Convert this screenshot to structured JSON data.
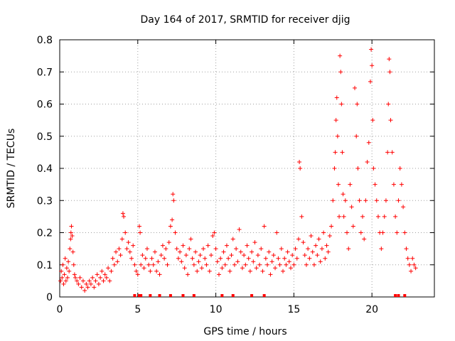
{
  "chart_data": {
    "type": "scatter",
    "title": "Day 164 of 2017, SRMTID for receiver djig",
    "xlabel": "GPS time / hours",
    "ylabel": "SRMTID / TECUs",
    "xlim": [
      0,
      24
    ],
    "ylim": [
      0,
      0.8
    ],
    "xticks": [
      0,
      5,
      10,
      15,
      20
    ],
    "yticks": [
      0,
      0.1,
      0.2,
      0.3,
      0.4,
      0.5,
      0.6,
      0.7,
      0.8
    ],
    "xtick_labels": [
      "0",
      "5",
      "10",
      "15",
      "20"
    ],
    "ytick_labels": [
      "0",
      "0.1",
      "0.2",
      "0.3",
      "0.4",
      "0.5",
      "0.6",
      "0.7",
      "0.8"
    ],
    "grid": true,
    "marker": "+",
    "color": "#ff0000",
    "series": [
      {
        "name": "SRMTID",
        "points": [
          [
            0.05,
            0.05
          ],
          [
            0.1,
            0.08
          ],
          [
            0.15,
            0.06
          ],
          [
            0.2,
            0.1
          ],
          [
            0.25,
            0.04
          ],
          [
            0.3,
            0.07
          ],
          [
            0.35,
            0.12
          ],
          [
            0.4,
            0.05
          ],
          [
            0.45,
            0.09
          ],
          [
            0.5,
            0.06
          ],
          [
            0.55,
            0.11
          ],
          [
            0.6,
            0.08
          ],
          [
            0.65,
            0.15
          ],
          [
            0.7,
            0.18
          ],
          [
            0.72,
            0.2
          ],
          [
            0.75,
            0.22
          ],
          [
            0.8,
            0.19
          ],
          [
            0.85,
            0.14
          ],
          [
            0.9,
            0.1
          ],
          [
            0.95,
            0.07
          ],
          [
            1.0,
            0.06
          ],
          [
            1.1,
            0.05
          ],
          [
            1.2,
            0.04
          ],
          [
            1.3,
            0.06
          ],
          [
            1.4,
            0.03
          ],
          [
            1.5,
            0.05
          ],
          [
            1.6,
            0.02
          ],
          [
            1.7,
            0.04
          ],
          [
            1.8,
            0.03
          ],
          [
            1.9,
            0.05
          ],
          [
            2.0,
            0.04
          ],
          [
            2.1,
            0.06
          ],
          [
            2.2,
            0.03
          ],
          [
            2.3,
            0.05
          ],
          [
            2.4,
            0.07
          ],
          [
            2.5,
            0.04
          ],
          [
            2.6,
            0.06
          ],
          [
            2.7,
            0.08
          ],
          [
            2.8,
            0.05
          ],
          [
            2.9,
            0.07
          ],
          [
            3.0,
            0.06
          ],
          [
            3.1,
            0.09
          ],
          [
            3.2,
            0.05
          ],
          [
            3.3,
            0.08
          ],
          [
            3.4,
            0.12
          ],
          [
            3.5,
            0.1
          ],
          [
            3.6,
            0.14
          ],
          [
            3.7,
            0.11
          ],
          [
            3.8,
            0.15
          ],
          [
            3.9,
            0.13
          ],
          [
            4.0,
            0.18
          ],
          [
            4.05,
            0.26
          ],
          [
            4.1,
            0.25
          ],
          [
            4.2,
            0.2
          ],
          [
            4.3,
            0.15
          ],
          [
            4.4,
            0.17
          ],
          [
            4.5,
            0.14
          ],
          [
            4.6,
            0.12
          ],
          [
            4.7,
            0.16
          ],
          [
            4.8,
            0.1
          ],
          [
            4.9,
            0.08
          ],
          [
            5.0,
            0.07
          ],
          [
            5.1,
            0.22
          ],
          [
            5.15,
            0.2
          ],
          [
            5.2,
            0.1
          ],
          [
            5.3,
            0.13
          ],
          [
            5.4,
            0.09
          ],
          [
            5.5,
            0.12
          ],
          [
            5.6,
            0.15
          ],
          [
            5.7,
            0.1
          ],
          [
            5.8,
            0.08
          ],
          [
            5.9,
            0.12
          ],
          [
            6.0,
            0.1
          ],
          [
            6.1,
            0.14
          ],
          [
            6.2,
            0.08
          ],
          [
            6.3,
            0.11
          ],
          [
            6.4,
            0.07
          ],
          [
            6.5,
            0.13
          ],
          [
            6.6,
            0.16
          ],
          [
            6.7,
            0.12
          ],
          [
            6.8,
            0.15
          ],
          [
            6.9,
            0.1
          ],
          [
            7.0,
            0.17
          ],
          [
            7.1,
            0.22
          ],
          [
            7.2,
            0.24
          ],
          [
            7.25,
            0.32
          ],
          [
            7.3,
            0.3
          ],
          [
            7.4,
            0.2
          ],
          [
            7.5,
            0.15
          ],
          [
            7.6,
            0.12
          ],
          [
            7.7,
            0.14
          ],
          [
            7.8,
            0.11
          ],
          [
            7.9,
            0.16
          ],
          [
            8.0,
            0.09
          ],
          [
            8.1,
            0.13
          ],
          [
            8.2,
            0.07
          ],
          [
            8.3,
            0.15
          ],
          [
            8.4,
            0.18
          ],
          [
            8.5,
            0.12
          ],
          [
            8.6,
            0.1
          ],
          [
            8.7,
            0.14
          ],
          [
            8.8,
            0.08
          ],
          [
            8.9,
            0.11
          ],
          [
            9.0,
            0.13
          ],
          [
            9.1,
            0.09
          ],
          [
            9.2,
            0.15
          ],
          [
            9.3,
            0.12
          ],
          [
            9.4,
            0.1
          ],
          [
            9.5,
            0.16
          ],
          [
            9.6,
            0.08
          ],
          [
            9.7,
            0.13
          ],
          [
            9.8,
            0.19
          ],
          [
            9.9,
            0.2
          ],
          [
            10.0,
            0.15
          ],
          [
            10.1,
            0.11
          ],
          [
            10.2,
            0.07
          ],
          [
            10.3,
            0.12
          ],
          [
            10.4,
            0.09
          ],
          [
            10.5,
            0.14
          ],
          [
            10.6,
            0.1
          ],
          [
            10.7,
            0.16
          ],
          [
            10.8,
            0.12
          ],
          [
            10.9,
            0.08
          ],
          [
            11.0,
            0.13
          ],
          [
            11.1,
            0.18
          ],
          [
            11.2,
            0.1
          ],
          [
            11.3,
            0.15
          ],
          [
            11.4,
            0.11
          ],
          [
            11.5,
            0.21
          ],
          [
            11.6,
            0.14
          ],
          [
            11.7,
            0.09
          ],
          [
            11.8,
            0.13
          ],
          [
            11.9,
            0.1
          ],
          [
            12.0,
            0.16
          ],
          [
            12.1,
            0.12
          ],
          [
            12.2,
            0.08
          ],
          [
            12.3,
            0.14
          ],
          [
            12.4,
            0.11
          ],
          [
            12.5,
            0.17
          ],
          [
            12.6,
            0.09
          ],
          [
            12.7,
            0.13
          ],
          [
            12.8,
            0.1
          ],
          [
            12.9,
            0.15
          ],
          [
            13.0,
            0.08
          ],
          [
            13.1,
            0.22
          ],
          [
            13.2,
            0.12
          ],
          [
            13.3,
            0.1
          ],
          [
            13.4,
            0.14
          ],
          [
            13.5,
            0.07
          ],
          [
            13.6,
            0.11
          ],
          [
            13.7,
            0.13
          ],
          [
            13.8,
            0.09
          ],
          [
            13.9,
            0.2
          ],
          [
            14.0,
            0.12
          ],
          [
            14.1,
            0.1
          ],
          [
            14.2,
            0.15
          ],
          [
            14.3,
            0.08
          ],
          [
            14.4,
            0.12
          ],
          [
            14.5,
            0.1
          ],
          [
            14.6,
            0.14
          ],
          [
            14.7,
            0.11
          ],
          [
            14.8,
            0.09
          ],
          [
            14.9,
            0.13
          ],
          [
            15.0,
            0.1
          ],
          [
            15.1,
            0.15
          ],
          [
            15.2,
            0.12
          ],
          [
            15.3,
            0.18
          ],
          [
            15.35,
            0.42
          ],
          [
            15.4,
            0.4
          ],
          [
            15.5,
            0.25
          ],
          [
            15.6,
            0.17
          ],
          [
            15.7,
            0.13
          ],
          [
            15.8,
            0.1
          ],
          [
            15.9,
            0.15
          ],
          [
            16.0,
            0.12
          ],
          [
            16.1,
            0.19
          ],
          [
            16.2,
            0.14
          ],
          [
            16.3,
            0.1
          ],
          [
            16.4,
            0.16
          ],
          [
            16.5,
            0.13
          ],
          [
            16.6,
            0.18
          ],
          [
            16.7,
            0.11
          ],
          [
            16.8,
            0.15
          ],
          [
            16.9,
            0.2
          ],
          [
            17.0,
            0.12
          ],
          [
            17.1,
            0.16
          ],
          [
            17.2,
            0.14
          ],
          [
            17.3,
            0.19
          ],
          [
            17.4,
            0.22
          ],
          [
            17.5,
            0.3
          ],
          [
            17.6,
            0.4
          ],
          [
            17.65,
            0.45
          ],
          [
            17.7,
            0.55
          ],
          [
            17.75,
            0.62
          ],
          [
            17.8,
            0.5
          ],
          [
            17.85,
            0.35
          ],
          [
            17.9,
            0.25
          ],
          [
            17.95,
            0.75
          ],
          [
            18.0,
            0.7
          ],
          [
            18.05,
            0.6
          ],
          [
            18.1,
            0.45
          ],
          [
            18.15,
            0.32
          ],
          [
            18.2,
            0.25
          ],
          [
            18.3,
            0.3
          ],
          [
            18.4,
            0.2
          ],
          [
            18.5,
            0.15
          ],
          [
            18.6,
            0.35
          ],
          [
            18.7,
            0.28
          ],
          [
            18.8,
            0.22
          ],
          [
            18.9,
            0.65
          ],
          [
            19.0,
            0.5
          ],
          [
            19.05,
            0.6
          ],
          [
            19.1,
            0.4
          ],
          [
            19.2,
            0.3
          ],
          [
            19.3,
            0.2
          ],
          [
            19.4,
            0.25
          ],
          [
            19.5,
            0.18
          ],
          [
            19.6,
            0.3
          ],
          [
            19.7,
            0.42
          ],
          [
            19.8,
            0.48
          ],
          [
            19.9,
            0.67
          ],
          [
            19.95,
            0.77
          ],
          [
            20.0,
            0.72
          ],
          [
            20.05,
            0.55
          ],
          [
            20.1,
            0.4
          ],
          [
            20.2,
            0.35
          ],
          [
            20.3,
            0.3
          ],
          [
            20.4,
            0.25
          ],
          [
            20.5,
            0.2
          ],
          [
            20.6,
            0.15
          ],
          [
            20.7,
            0.2
          ],
          [
            20.8,
            0.25
          ],
          [
            20.9,
            0.3
          ],
          [
            21.0,
            0.45
          ],
          [
            21.05,
            0.6
          ],
          [
            21.1,
            0.74
          ],
          [
            21.15,
            0.7
          ],
          [
            21.2,
            0.55
          ],
          [
            21.3,
            0.45
          ],
          [
            21.4,
            0.35
          ],
          [
            21.5,
            0.25
          ],
          [
            21.6,
            0.2
          ],
          [
            21.7,
            0.3
          ],
          [
            21.8,
            0.4
          ],
          [
            21.9,
            0.35
          ],
          [
            22.0,
            0.28
          ],
          [
            22.1,
            0.2
          ],
          [
            22.2,
            0.15
          ],
          [
            22.3,
            0.12
          ],
          [
            22.4,
            0.1
          ],
          [
            22.5,
            0.08
          ],
          [
            22.6,
            0.12
          ],
          [
            22.7,
            0.1
          ],
          [
            22.8,
            0.09
          ]
        ]
      }
    ],
    "gap_markers_x": [
      4.8,
      5.1,
      5.2,
      5.8,
      6.4,
      7.1,
      7.9,
      8.6,
      10.4,
      11.1,
      12.3,
      13.1,
      21.5,
      21.7,
      22.1
    ]
  }
}
